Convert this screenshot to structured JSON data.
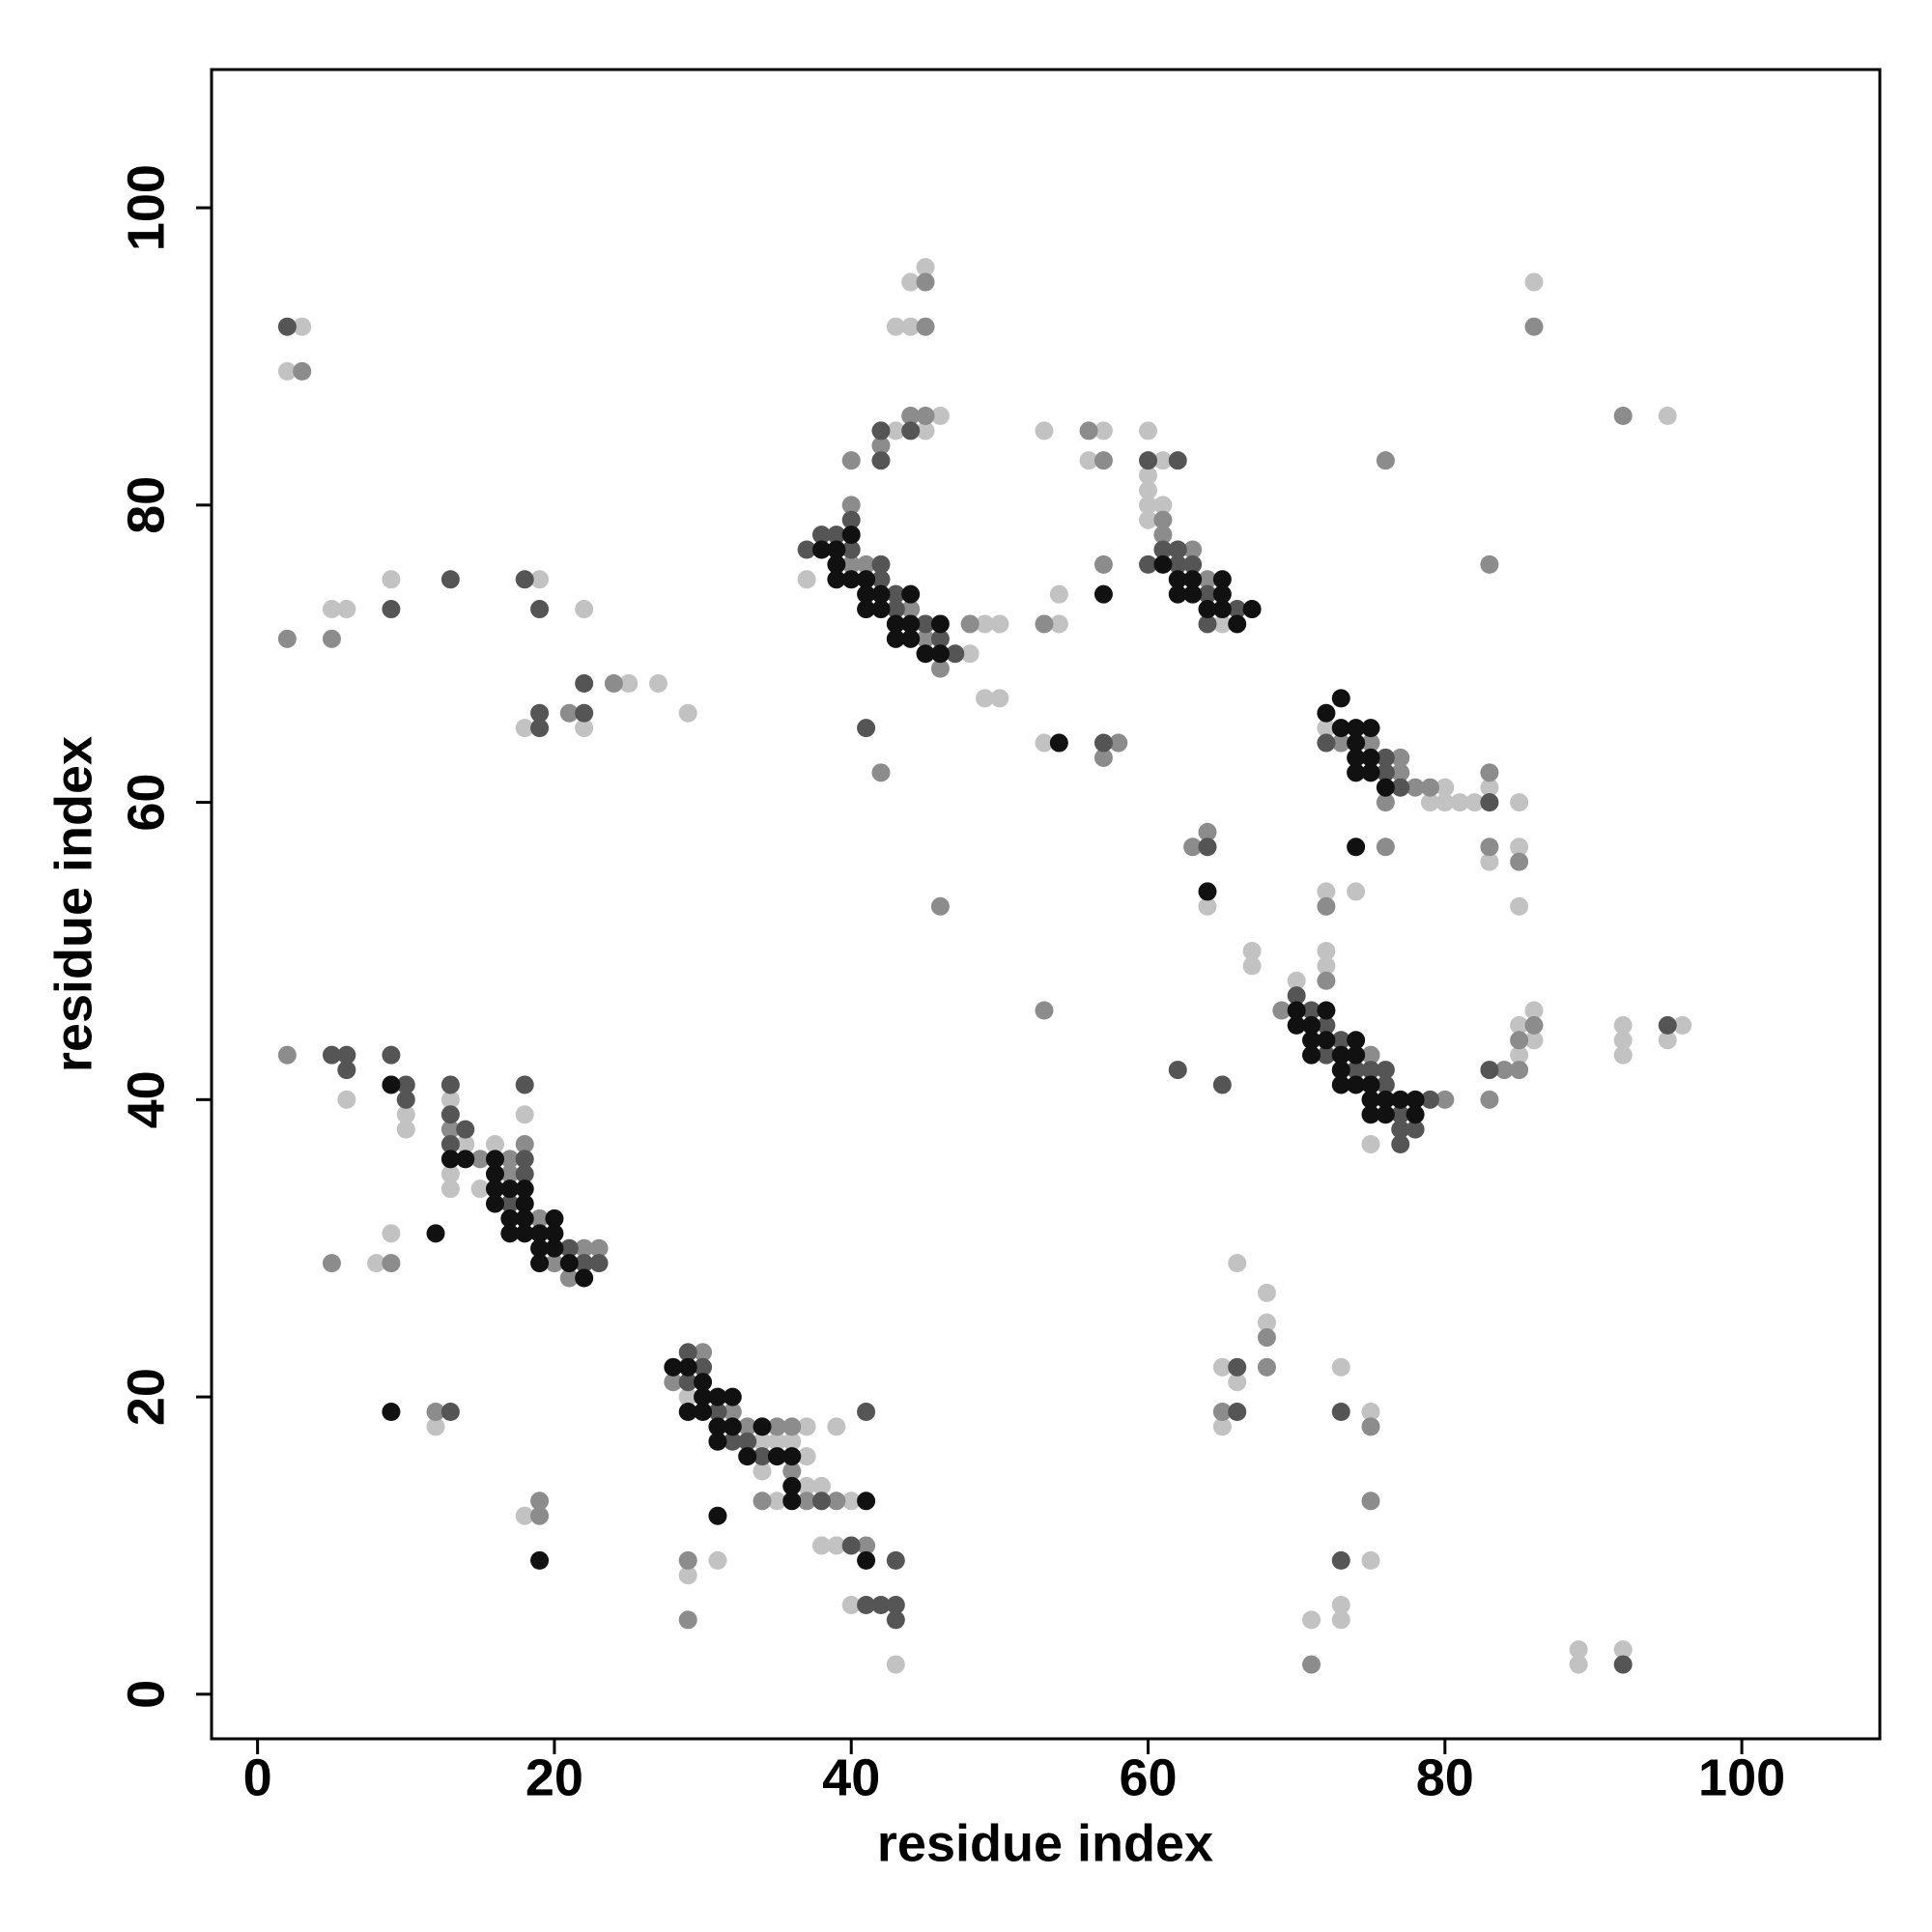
{
  "chart_data": {
    "type": "scatter",
    "xlabel": "residue index",
    "ylabel": "residue index",
    "xlim": [
      -3.1,
      109.3
    ],
    "ylim": [
      -3.0,
      109.3
    ],
    "xticks": [
      0,
      20,
      40,
      60,
      80,
      100
    ],
    "yticks": [
      0,
      20,
      40,
      60,
      80,
      100
    ],
    "grid": false,
    "series": [
      {
        "color": "#c2c2c2",
        "x": [
          3,
          2,
          5,
          6,
          9,
          19,
          22,
          18,
          22,
          25,
          27,
          29,
          6,
          10,
          10,
          13,
          14,
          13,
          13,
          16,
          15,
          18,
          9,
          8,
          12,
          18,
          29,
          37,
          39,
          34,
          35,
          36,
          37,
          34,
          37,
          38,
          35,
          40,
          38,
          39,
          40,
          43,
          31,
          29,
          37,
          48,
          49,
          50,
          49,
          50,
          43,
          45,
          46,
          43,
          44,
          44,
          45,
          53,
          57,
          56,
          54,
          54,
          53,
          60,
          61,
          60,
          60,
          60,
          61,
          60,
          65,
          72,
          80,
          79,
          80,
          81,
          82,
          83,
          85,
          85,
          83,
          85,
          64,
          72,
          74,
          67,
          67,
          70,
          75,
          72,
          72,
          85,
          86,
          85,
          86,
          92,
          92,
          92,
          96,
          95,
          86,
          95,
          66,
          68,
          68,
          65,
          66,
          65,
          73,
          75,
          75,
          73,
          73,
          71,
          89,
          89,
          92
        ],
        "y": [
          92,
          89,
          73,
          73,
          75,
          75,
          73,
          65,
          65,
          68,
          68,
          66,
          40,
          39,
          38,
          40,
          37,
          35,
          34,
          37,
          34,
          39,
          31,
          29,
          18,
          12,
          20,
          18,
          18,
          17,
          17,
          17,
          16,
          15,
          14,
          14,
          13,
          13,
          10,
          10,
          6,
          2,
          9,
          8,
          75,
          70,
          72,
          72,
          67,
          67,
          85,
          85,
          86,
          92,
          92,
          95,
          96,
          85,
          85,
          83,
          72,
          74,
          64,
          85,
          83,
          82,
          81,
          80,
          80,
          79,
          72,
          65,
          61,
          60,
          60,
          60,
          60,
          61,
          60,
          57,
          56,
          53,
          53,
          54,
          54,
          50,
          49,
          48,
          37,
          50,
          49,
          43,
          44,
          45,
          46,
          45,
          44,
          43,
          45,
          44,
          95,
          86,
          29,
          27,
          25,
          22,
          21,
          18,
          22,
          19,
          9,
          6,
          5,
          5,
          3,
          2,
          3
        ]
      },
      {
        "color": "#8c8c8c",
        "x": [
          3,
          2,
          5,
          21,
          24,
          2,
          13,
          15,
          17,
          18,
          17,
          19,
          22,
          23,
          20,
          21,
          9,
          5,
          12,
          19,
          19,
          28,
          30,
          32,
          33,
          35,
          36,
          36,
          34,
          37,
          39,
          41,
          29,
          29,
          40,
          41,
          44,
          45,
          46,
          48,
          40,
          40,
          42,
          44,
          45,
          45,
          45,
          42,
          46,
          56,
          57,
          53,
          57,
          58,
          57,
          53,
          61,
          61,
          63,
          64,
          73,
          75,
          77,
          77,
          78,
          79,
          76,
          83,
          83,
          85,
          76,
          76,
          83,
          63,
          64,
          72,
          69,
          75,
          80,
          72,
          84,
          85,
          83,
          85,
          86,
          86,
          92,
          68,
          68,
          65,
          75,
          75,
          71
        ],
        "y": [
          89,
          71,
          71,
          66,
          68,
          43,
          38,
          36,
          36,
          37,
          35,
          32,
          30,
          30,
          29,
          28,
          29,
          29,
          19,
          12,
          13,
          21,
          23,
          19,
          18,
          18,
          18,
          15,
          13,
          13,
          13,
          10,
          9,
          5,
          76,
          76,
          73,
          71,
          69,
          72,
          80,
          83,
          84,
          86,
          86,
          92,
          95,
          62,
          53,
          85,
          83,
          72,
          76,
          64,
          63,
          46,
          79,
          78,
          77,
          75,
          64,
          64,
          63,
          62,
          61,
          61,
          60,
          62,
          57,
          56,
          57,
          83,
          76,
          57,
          58,
          53,
          46,
          43,
          40,
          48,
          42,
          42,
          40,
          44,
          45,
          92,
          86,
          24,
          22,
          19,
          18,
          13,
          2
        ]
      },
      {
        "color": "#555555",
        "x": [
          2,
          9,
          13,
          18,
          19,
          19,
          19,
          22,
          22,
          5,
          6,
          6,
          9,
          10,
          10,
          13,
          13,
          14,
          13,
          18,
          18,
          17,
          21,
          22,
          23,
          18,
          13,
          29,
          30,
          29,
          31,
          32,
          33,
          34,
          38,
          41,
          40,
          43,
          41,
          42,
          43,
          43,
          37,
          38,
          39,
          40,
          42,
          42,
          43,
          43,
          45,
          46,
          47,
          40,
          42,
          42,
          44,
          41,
          57,
          60,
          62,
          61,
          62,
          60,
          62,
          63,
          64,
          66,
          64,
          72,
          76,
          76,
          77,
          83,
          64,
          62,
          65,
          70,
          71,
          72,
          73,
          72,
          74,
          75,
          76,
          76,
          79,
          77,
          77,
          78,
          77,
          83,
          95,
          66,
          66,
          73,
          73,
          92
        ],
        "y": [
          92,
          73,
          75,
          75,
          73,
          66,
          65,
          68,
          66,
          43,
          43,
          42,
          43,
          41,
          40,
          41,
          39,
          38,
          37,
          36,
          35,
          33,
          30,
          29,
          29,
          41,
          19,
          23,
          22,
          21,
          19,
          17,
          17,
          16,
          13,
          19,
          10,
          9,
          6,
          6,
          6,
          5,
          77,
          78,
          78,
          77,
          76,
          75,
          74,
          73,
          72,
          71,
          70,
          79,
          83,
          85,
          85,
          65,
          64,
          83,
          83,
          77,
          77,
          76,
          76,
          76,
          74,
          73,
          72,
          64,
          63,
          62,
          61,
          60,
          57,
          42,
          41,
          47,
          46,
          45,
          44,
          43,
          42,
          42,
          42,
          41,
          40,
          39,
          38,
          38,
          37,
          42,
          45,
          22,
          19,
          19,
          9,
          2
        ]
      },
      {
        "color": "#111111",
        "x": [
          9,
          13,
          14,
          16,
          16,
          16,
          17,
          18,
          16,
          18,
          17,
          18,
          17,
          18,
          19,
          20,
          19,
          20,
          20,
          19,
          21,
          22,
          12,
          9,
          19,
          28,
          29,
          30,
          30,
          31,
          32,
          29,
          30,
          31,
          32,
          34,
          31,
          33,
          35,
          36,
          36,
          36,
          41,
          41,
          31,
          38,
          40,
          39,
          39,
          39,
          40,
          41,
          41,
          42,
          44,
          41,
          42,
          43,
          44,
          46,
          43,
          44,
          45,
          46,
          57,
          54,
          61,
          62,
          63,
          65,
          62,
          63,
          65,
          64,
          65,
          67,
          66,
          72,
          73,
          73,
          74,
          75,
          74,
          74,
          75,
          74,
          75,
          76,
          74,
          64,
          70,
          72,
          70,
          71,
          71,
          72,
          74,
          71,
          73,
          74,
          73,
          73,
          74,
          75,
          75,
          76,
          77,
          78,
          75,
          76,
          78
        ],
        "y": [
          41,
          36,
          36,
          36,
          35,
          34,
          34,
          34,
          33,
          33,
          32,
          32,
          31,
          31,
          31,
          32,
          30,
          30,
          31,
          29,
          29,
          28,
          31,
          19,
          9,
          22,
          22,
          21,
          20,
          20,
          20,
          19,
          19,
          18,
          18,
          18,
          17,
          16,
          16,
          16,
          14,
          13,
          13,
          9,
          12,
          77,
          78,
          77,
          76,
          75,
          75,
          75,
          74,
          74,
          74,
          73,
          73,
          72,
          72,
          72,
          71,
          71,
          70,
          70,
          74,
          64,
          76,
          75,
          75,
          75,
          74,
          74,
          74,
          73,
          73,
          73,
          72,
          66,
          67,
          65,
          65,
          65,
          64,
          63,
          63,
          62,
          62,
          61,
          57,
          54,
          46,
          46,
          45,
          45,
          44,
          44,
          44,
          43,
          43,
          43,
          42,
          41,
          41,
          41,
          40,
          40,
          40,
          40,
          39,
          39,
          39
        ]
      }
    ]
  }
}
